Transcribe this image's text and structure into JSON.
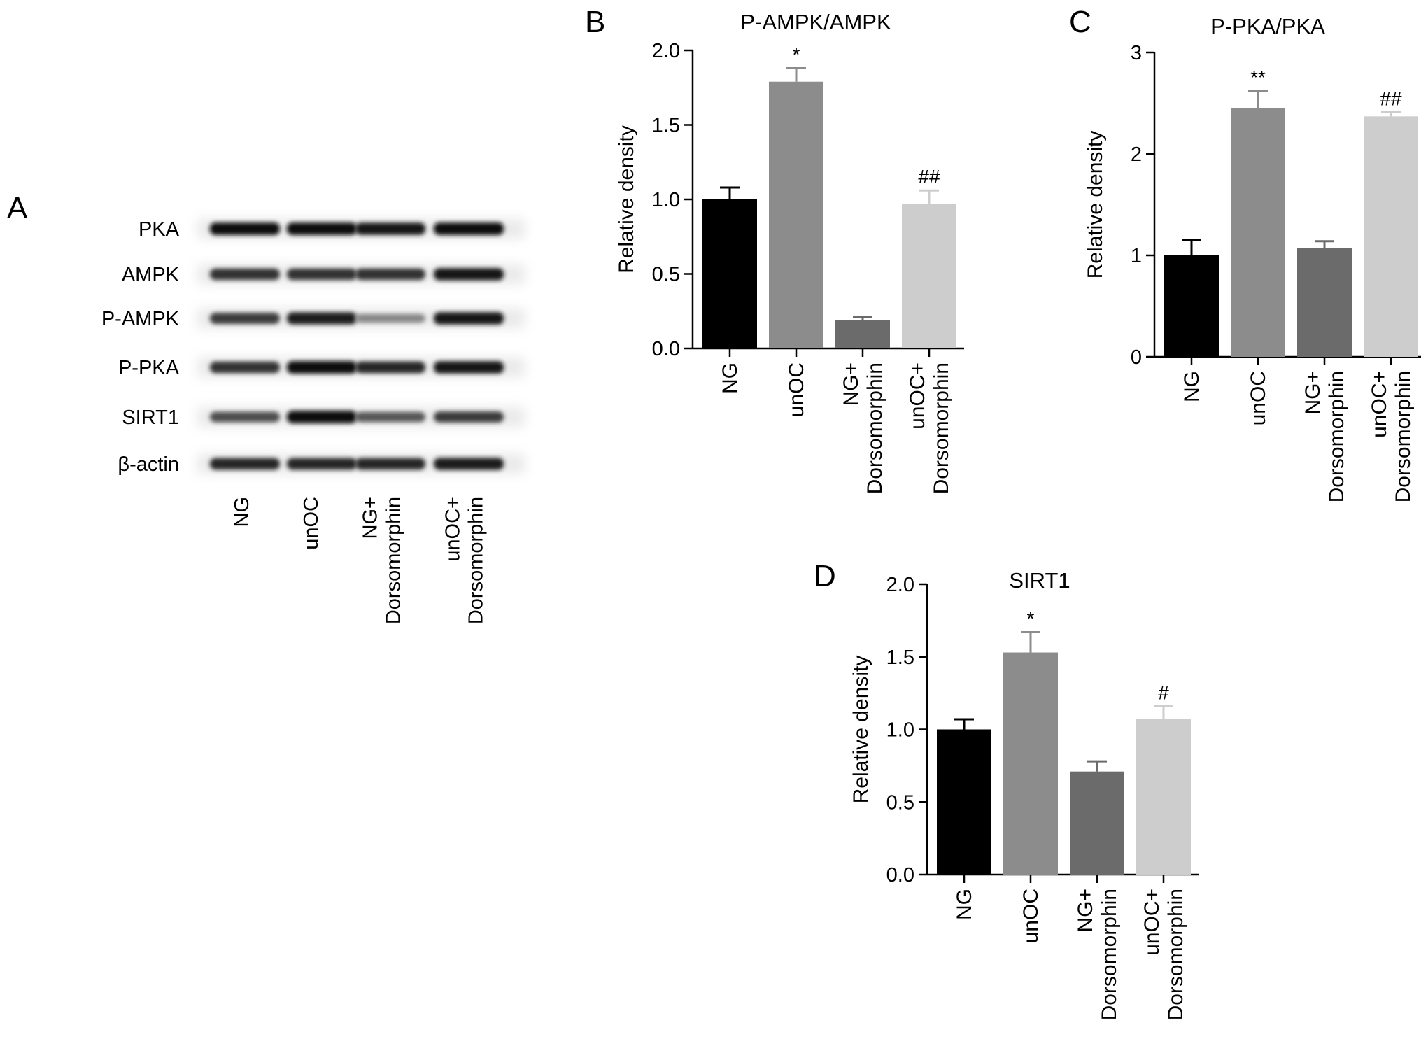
{
  "figure": {
    "panels": {
      "A": "A",
      "B": "B",
      "C": "C",
      "D": "D"
    }
  },
  "blot": {
    "proteins": [
      {
        "label": "PKA",
        "intensity": [
          1.0,
          1.0,
          0.95,
          1.0
        ]
      },
      {
        "label": "AMPK",
        "intensity": [
          0.8,
          0.8,
          0.8,
          0.95
        ]
      },
      {
        "label": "P-AMPK",
        "intensity": [
          0.75,
          0.9,
          0.35,
          0.95
        ]
      },
      {
        "label": "P-PKA",
        "intensity": [
          0.8,
          1.0,
          0.85,
          0.95
        ]
      },
      {
        "label": "SIRT1",
        "intensity": [
          0.65,
          1.0,
          0.6,
          0.75
        ]
      },
      {
        "label": "β-actin",
        "intensity": [
          0.85,
          0.85,
          0.85,
          0.9
        ]
      }
    ],
    "lanes": [
      [
        "NG"
      ],
      [
        "unOC"
      ],
      [
        "NG+",
        "Dorsomorphin"
      ],
      [
        "unOC+",
        "Dorsomorphin"
      ]
    ]
  },
  "chart_data": [
    {
      "panel": "B",
      "type": "bar",
      "title": "P-AMPK/AMPK",
      "xlabel": "",
      "ylabel": "Relative density",
      "ylim": [
        0,
        2.0
      ],
      "yticks": [
        "0.0",
        "0.5",
        "1.0",
        "1.5",
        "2.0"
      ],
      "ytick_values": [
        0,
        0.5,
        1.0,
        1.5,
        2.0
      ],
      "categories": [
        [
          "NG"
        ],
        [
          "unOC"
        ],
        [
          "NG+",
          "Dorsomorphin"
        ],
        [
          "unOC+",
          "Dorsomorphin"
        ]
      ],
      "values": [
        1.0,
        1.79,
        0.19,
        0.97
      ],
      "errors": [
        0.08,
        0.09,
        0.02,
        0.09
      ],
      "significance": [
        "",
        "*",
        "",
        "##"
      ],
      "colors": [
        "#000000",
        "#8c8c8c",
        "#6b6b6b",
        "#cdcdcd"
      ]
    },
    {
      "panel": "C",
      "type": "bar",
      "title": "P-PKA/PKA",
      "xlabel": "",
      "ylabel": "Relative density",
      "ylim": [
        0,
        3
      ],
      "yticks": [
        "0",
        "1",
        "2",
        "3"
      ],
      "ytick_values": [
        0,
        1,
        2,
        3
      ],
      "categories": [
        [
          "NG"
        ],
        [
          "unOC"
        ],
        [
          "NG+",
          "Dorsomorphin"
        ],
        [
          "unOC+",
          "Dorsomorphin"
        ]
      ],
      "values": [
        1.0,
        2.45,
        1.07,
        2.37
      ],
      "errors": [
        0.15,
        0.17,
        0.07,
        0.04
      ],
      "significance": [
        "",
        "**",
        "",
        "##"
      ],
      "colors": [
        "#000000",
        "#8c8c8c",
        "#6b6b6b",
        "#cdcdcd"
      ]
    },
    {
      "panel": "D",
      "type": "bar",
      "title": "SIRT1",
      "xlabel": "",
      "ylabel": "Relative density",
      "ylim": [
        0,
        2.0
      ],
      "yticks": [
        "0.0",
        "0.5",
        "1.0",
        "1.5",
        "2.0"
      ],
      "ytick_values": [
        0,
        0.5,
        1.0,
        1.5,
        2.0
      ],
      "categories": [
        [
          "NG"
        ],
        [
          "unOC"
        ],
        [
          "NG+",
          "Dorsomorphin"
        ],
        [
          "unOC+",
          "Dorsomorphin"
        ]
      ],
      "values": [
        1.0,
        1.53,
        0.71,
        1.07
      ],
      "errors": [
        0.07,
        0.14,
        0.07,
        0.09
      ],
      "significance": [
        "",
        "*",
        "",
        "#"
      ],
      "colors": [
        "#000000",
        "#8c8c8c",
        "#6b6b6b",
        "#cdcdcd"
      ]
    }
  ]
}
